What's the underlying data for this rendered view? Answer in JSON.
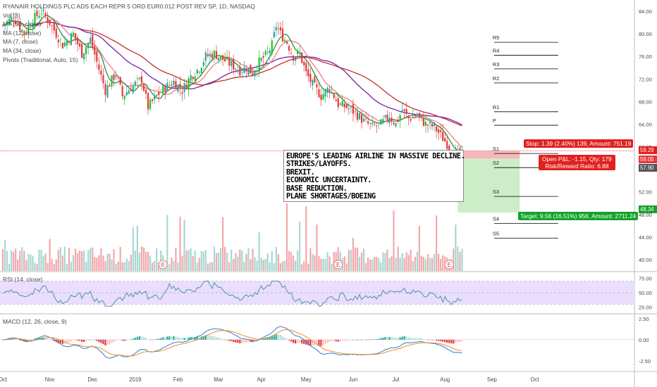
{
  "legend": {
    "title": "RYANAIR HOLDINGS PLC ADS EACH REPR 5 ORD EUR0.012 POST REV SP, 1D, NASDAQ",
    "volume": "Vol (3)",
    "ma50": "MA (50, close)",
    "ma12": "MA (12, close)",
    "ma7": "MA (7, close)",
    "ma34": "MA (34, close)",
    "pivots": "Pivots (Traditional, Auto, 15)"
  },
  "rsi_label": "RSI (14, close)",
  "macd_label": "MACD (12, 26, close, 9)",
  "note_lines": [
    "EUROPE'S LEADING AIRLINE IN MASSIVE DECLINE.",
    "STRIKES/LAYOFFS.",
    "BREXIT.",
    "ECONOMIC UNCERTAINTY.",
    "BASE REDUCTION.",
    "PLANE SHORTAGES/BOEING"
  ],
  "position": {
    "stop": "Stop: 1.39 (2.40%) 139, Amount: 751.19",
    "pnl": "Open P&L: -1.15, Qty: 179",
    "rr": "Risk/Reward Ratio: 6.88",
    "target": "Target: 9.56 (16.51%) 956, Amount: 2711.24",
    "stop_color": "#e0211f",
    "target_color": "#15a22a"
  },
  "price_tags": {
    "stop": "59.29",
    "current": "59.05",
    "entry": "57.90",
    "target": "48.34"
  },
  "colors": {
    "up": "#26a69a",
    "up_bright": "#1fc21f",
    "down": "#e5383b",
    "ma50": "#c3302f",
    "ma34": "#7b1fa2",
    "ma12": "#ef7f8c",
    "ma7": "#2e8b3d",
    "rsi": "#4f8fb5",
    "rsi_band": "#e9defb",
    "macd": "#2a7fd4",
    "signal": "#f08c20",
    "pivot": "#000000"
  },
  "chart_data": {
    "type": "candlestick",
    "price_axis": {
      "min": 38.0,
      "max": 85.0,
      "ticks": [
        84.0,
        80.0,
        76.0,
        72.0,
        68.0,
        64.0,
        60.0,
        56.0,
        52.0,
        48.0,
        44.0,
        40.0
      ]
    },
    "x_labels": [
      "Oct",
      "Nov",
      "Dec",
      "2019",
      "Feb",
      "Mar",
      "Apr",
      "May",
      "Jun",
      "Jul",
      "Aug",
      "Sep",
      "Oct"
    ],
    "x_label_days": [
      0,
      22,
      42,
      62,
      82,
      101,
      121,
      142,
      164,
      184,
      207,
      229,
      249
    ],
    "price_path": [
      [
        0,
        81.5
      ],
      [
        5,
        83.0
      ],
      [
        10,
        80.0
      ],
      [
        14,
        82.5
      ],
      [
        18,
        84.0
      ],
      [
        22,
        82.0
      ],
      [
        28,
        78.0
      ],
      [
        33,
        80.0
      ],
      [
        37,
        76.5
      ],
      [
        41,
        79.0
      ],
      [
        44,
        75.0
      ],
      [
        48,
        70.0
      ],
      [
        53,
        73.0
      ],
      [
        56,
        69.0
      ],
      [
        60,
        70.5
      ],
      [
        65,
        72.0
      ],
      [
        68,
        67.0
      ],
      [
        72,
        69.0
      ],
      [
        76,
        70.5
      ],
      [
        80,
        71.5
      ],
      [
        84,
        70.0
      ],
      [
        88,
        72.5
      ],
      [
        92,
        74.0
      ],
      [
        95,
        76.0
      ],
      [
        99,
        76.5
      ],
      [
        103,
        75.5
      ],
      [
        107,
        74.5
      ],
      [
        111,
        73.5
      ],
      [
        114,
        74.0
      ],
      [
        117,
        73.0
      ],
      [
        120,
        75.0
      ],
      [
        124,
        76.5
      ],
      [
        126,
        78.0
      ],
      [
        128,
        81.5
      ],
      [
        130,
        80.0
      ],
      [
        133,
        78.5
      ],
      [
        136,
        76.0
      ],
      [
        139,
        76.5
      ],
      [
        142,
        73.0
      ],
      [
        145,
        71.0
      ],
      [
        149,
        69.0
      ],
      [
        153,
        70.5
      ],
      [
        157,
        67.5
      ],
      [
        161,
        67.0
      ],
      [
        165,
        66.0
      ],
      [
        169,
        64.5
      ],
      [
        173,
        63.5
      ],
      [
        177,
        64.0
      ],
      [
        181,
        65.5
      ],
      [
        184,
        64.0
      ],
      [
        187,
        66.5
      ],
      [
        190,
        65.0
      ],
      [
        194,
        65.5
      ],
      [
        198,
        64.0
      ],
      [
        202,
        63.5
      ],
      [
        206,
        61.5
      ],
      [
        209,
        60.0
      ],
      [
        211,
        59.0
      ],
      [
        213,
        58.5
      ],
      [
        215,
        58.0
      ]
    ],
    "ma_anchor": {
      "ma50": 63.7,
      "ma34": 63.9
    },
    "pivots": [
      {
        "label": "R5",
        "value": 78.5
      },
      {
        "label": "R4",
        "value": 76.2
      },
      {
        "label": "R3",
        "value": 73.8
      },
      {
        "label": "R2",
        "value": 71.3
      },
      {
        "label": "R1",
        "value": 66.2
      },
      {
        "label": "P",
        "value": 63.8
      },
      {
        "label": "S1",
        "value": 58.8
      },
      {
        "label": "S2",
        "value": 56.3
      },
      {
        "label": "S3",
        "value": 51.2
      },
      {
        "label": "S4",
        "value": 46.4
      },
      {
        "label": "S5",
        "value": 43.8
      }
    ],
    "position": {
      "entry": 57.9,
      "stop": 59.29,
      "target": 48.34,
      "start_day": 213,
      "end_day": 242
    },
    "earnings_days": [
      75,
      157,
      209
    ],
    "volume_max": 6,
    "rsi": {
      "axis": [
        25.0,
        50.0,
        75.0
      ],
      "band": [
        30,
        70
      ]
    },
    "macd": {
      "axis": [
        2.5,
        0.0,
        -2.5
      ],
      "min": -3.6,
      "max": 2.9
    }
  }
}
